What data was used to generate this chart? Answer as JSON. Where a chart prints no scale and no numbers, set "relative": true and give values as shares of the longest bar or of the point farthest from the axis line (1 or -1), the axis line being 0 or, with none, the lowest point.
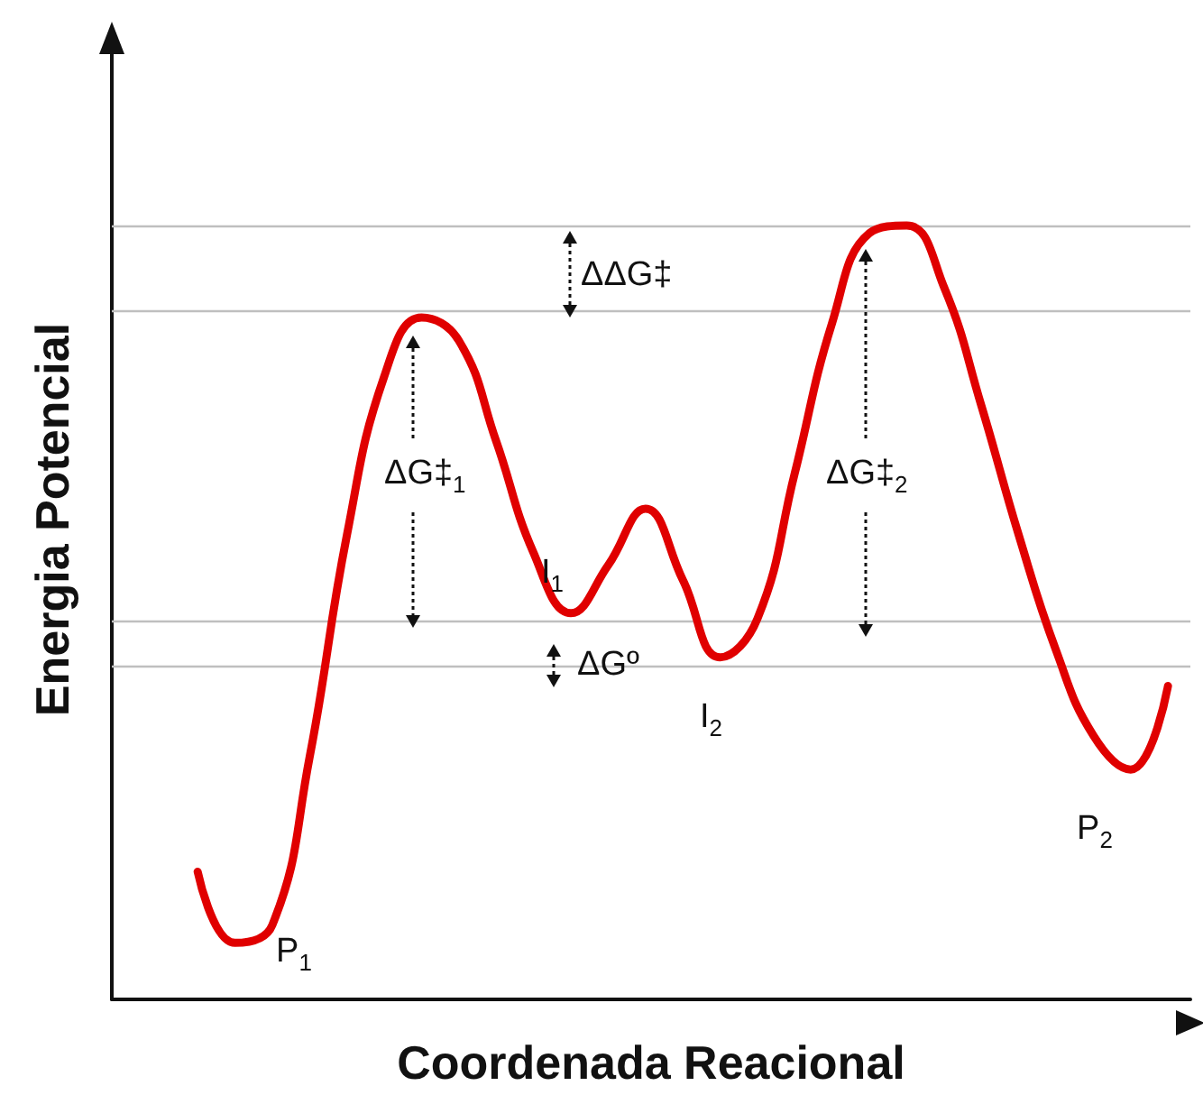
{
  "chart_data": {
    "type": "line",
    "relative": true,
    "xlabel": "Coordenada Reacional",
    "ylabel": "Energia Potencial",
    "categories": [
      null,
      null,
      null,
      null,
      null,
      null,
      null,
      null,
      null,
      null,
      null,
      null,
      null,
      null,
      null,
      null,
      null,
      null,
      null,
      null,
      null,
      null,
      null,
      null,
      null,
      null,
      null
    ],
    "series": [
      {
        "color": "#e00000",
        "values": [
          0.165,
          0.073,
          0.096,
          0.313,
          0.6,
          0.805,
          0.881,
          0.851,
          0.721,
          0.577,
          0.499,
          0.561,
          0.634,
          0.542,
          0.442,
          0.492,
          0.68,
          0.874,
          0.99,
          1.0,
          0.92,
          0.767,
          0.6,
          0.451,
          0.341,
          0.297,
          0.405
        ]
      }
    ],
    "ref_lines": [
      {
        "axis": "y",
        "value": 1.0,
        "color": "#bfbfbf"
      },
      {
        "axis": "y",
        "value": 0.89,
        "color": "#bfbfbf"
      },
      {
        "axis": "y",
        "value": 0.49,
        "color": "#bfbfbf"
      },
      {
        "axis": "y",
        "value": 0.43,
        "color": "#bfbfbf"
      }
    ],
    "annotations": [
      "ΔΔG‡",
      "ΔG‡$_{1}$",
      "ΔG‡$_{2}$",
      "ΔGº",
      "I$_{1}$",
      "I$_{2}$",
      "P$_{1}$",
      "P$_{2}$"
    ],
    "grid": false,
    "marker": "none",
    "line_style": "solid"
  }
}
